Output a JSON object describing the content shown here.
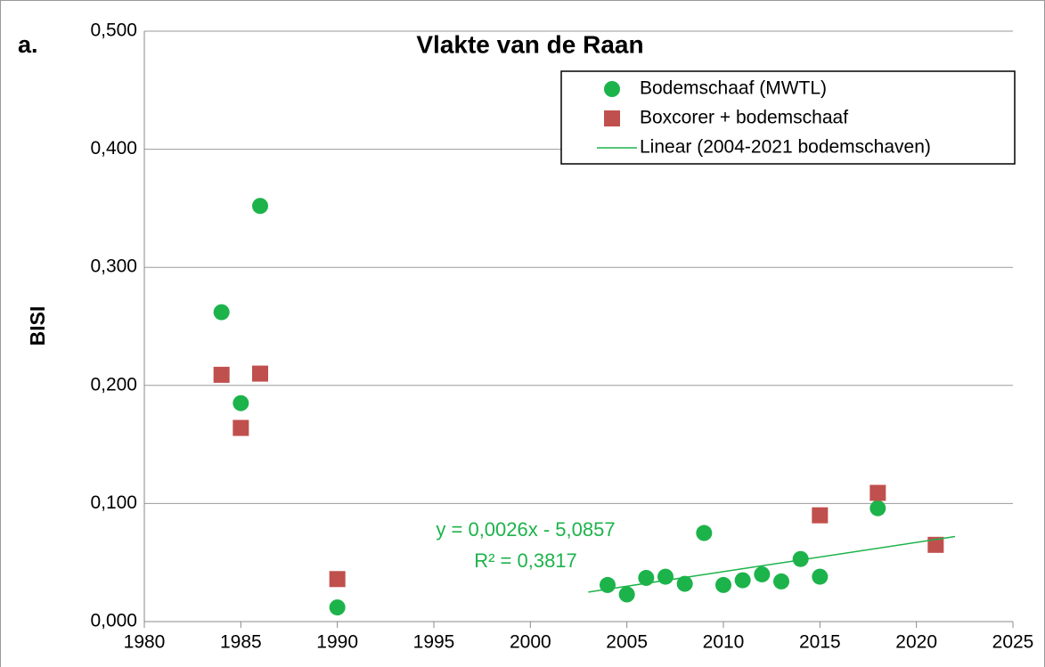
{
  "chart_data": {
    "type": "scatter",
    "title": "Vlakte van de Raan",
    "ylabel": "BISI",
    "annotations": [
      "a.",
      "y = 0,0026x - 5,0857",
      "R² = 0,3817"
    ],
    "xlim": [
      1980,
      2025
    ],
    "xticks": [
      1980,
      1985,
      1990,
      1995,
      2000,
      2005,
      2010,
      2015,
      2020,
      2025
    ],
    "ylim": [
      0,
      0.5
    ],
    "yticks": [
      {
        "value": 0,
        "label": "0,000"
      },
      {
        "value": 0.1,
        "label": "0,100"
      },
      {
        "value": 0.2,
        "label": "0,200"
      },
      {
        "value": 0.3,
        "label": "0,300"
      },
      {
        "value": 0.4,
        "label": "0,400"
      },
      {
        "value": 0.5,
        "label": "0,500"
      }
    ],
    "grid": true,
    "legend": "upper right",
    "series": [
      {
        "name": "Bodemschaaf (MWTL)",
        "color": "#1db34b",
        "marker": "circle",
        "x": [
          1984,
          1985,
          1986,
          1990,
          2004,
          2005,
          2006,
          2007,
          2008,
          2009,
          2010,
          2011,
          2012,
          2013,
          2014,
          2015,
          2018
        ],
        "values": [
          0.262,
          0.185,
          0.352,
          0.012,
          0.031,
          0.023,
          0.037,
          0.038,
          0.032,
          0.075,
          0.031,
          0.035,
          0.04,
          0.034,
          0.053,
          0.038,
          0.096
        ]
      },
      {
        "name": "Boxcorer + bodemschaaf",
        "color": "#c0504d",
        "marker": "square",
        "x": [
          1984,
          1985,
          1986,
          1990,
          2015,
          2018,
          2021
        ],
        "values": [
          0.209,
          0.164,
          0.21,
          0.036,
          0.09,
          0.109,
          0.065
        ]
      },
      {
        "name": "Linear (2004-2021 bodemschaven)",
        "color": "#1db34b",
        "marker": "line",
        "x": [
          2003,
          2022
        ],
        "values": [
          0.025,
          0.072
        ]
      }
    ]
  }
}
